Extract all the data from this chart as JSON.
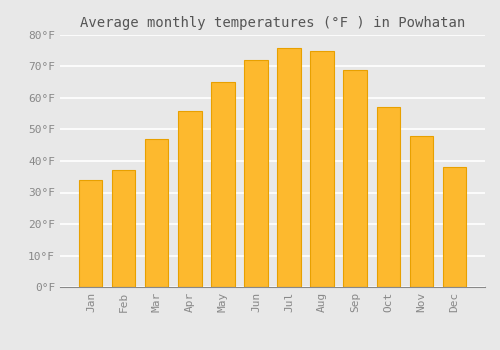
{
  "title": "Average monthly temperatures (°F ) in Powhatan",
  "months": [
    "Jan",
    "Feb",
    "Mar",
    "Apr",
    "May",
    "Jun",
    "Jul",
    "Aug",
    "Sep",
    "Oct",
    "Nov",
    "Dec"
  ],
  "values": [
    34,
    37,
    47,
    56,
    65,
    72,
    76,
    75,
    69,
    57,
    48,
    38
  ],
  "bar_color_main": "#FDB92E",
  "bar_color_edge": "#E8A000",
  "ylim": [
    0,
    80
  ],
  "yticks": [
    0,
    10,
    20,
    30,
    40,
    50,
    60,
    70,
    80
  ],
  "ytick_labels": [
    "0°F",
    "10°F",
    "20°F",
    "30°F",
    "40°F",
    "50°F",
    "60°F",
    "70°F",
    "80°F"
  ],
  "background_color": "#e8e8e8",
  "grid_color": "#ffffff",
  "title_fontsize": 10,
  "tick_fontsize": 8,
  "bar_width": 0.7
}
